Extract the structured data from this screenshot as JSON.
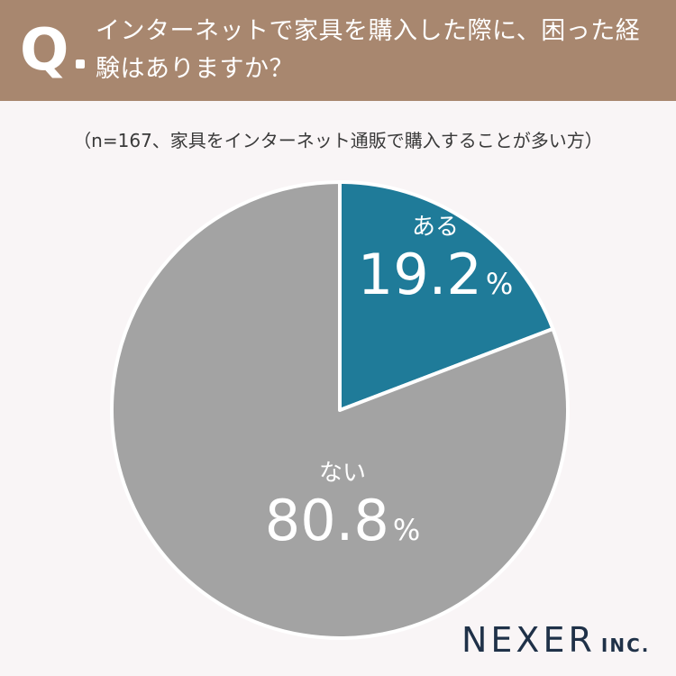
{
  "header": {
    "q_mark": "Q",
    "question": "インターネットで家具を購入した際に、困った経験はありますか？",
    "background_color": "#a8876f"
  },
  "subtitle": "（n=167、家具をインターネット通販で購入することが多い方）",
  "chart_data": {
    "type": "pie",
    "title": "",
    "slices": [
      {
        "label": "ある",
        "value": 19.2,
        "display": "19.2",
        "unit": "%",
        "color": "#1f7b99"
      },
      {
        "label": "ない",
        "value": 80.8,
        "display": "80.8",
        "unit": "%",
        "color": "#a3a3a3"
      }
    ],
    "start_angle": "12 o'clock",
    "direction": "clockwise"
  },
  "logo": {
    "main": "NEXER",
    "sub": "INC."
  }
}
